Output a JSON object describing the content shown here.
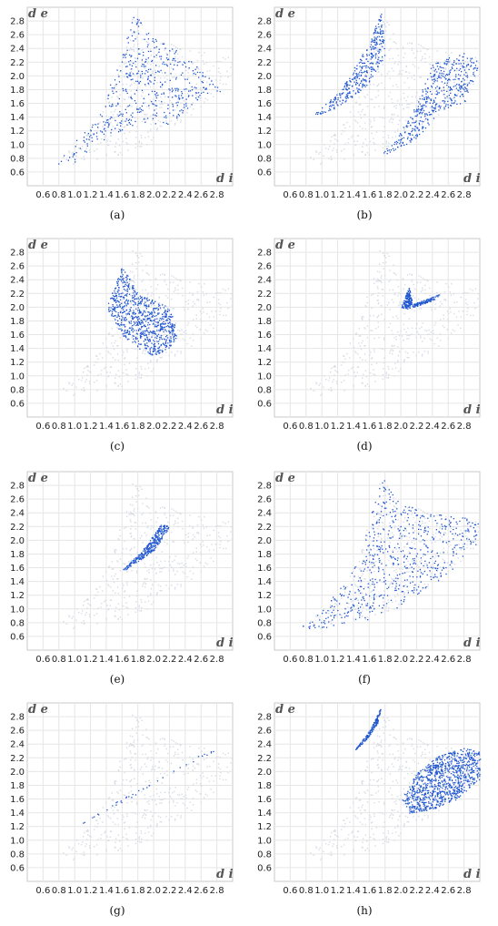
{
  "figure": {
    "panels": [
      {
        "label": "(a)",
        "axis_d_e": "d e",
        "axis_d_i": "d i",
        "region_kind": "broad",
        "region_color": "#1f55d0"
      },
      {
        "label": "(b)",
        "axis_d_e": "d e",
        "axis_d_i": "d i",
        "region_kind": "twin_wings",
        "region_color": "#1f55d0"
      },
      {
        "label": "(c)",
        "axis_d_e": "d e",
        "axis_d_i": "d i",
        "region_kind": "loops",
        "region_color": "#1f55d0"
      },
      {
        "label": "(d)",
        "axis_d_e": "d e",
        "axis_d_i": "d i",
        "region_kind": "small_v",
        "region_color": "#1f55d0"
      },
      {
        "label": "(e)",
        "axis_d_e": "d e",
        "axis_d_i": "d i",
        "region_kind": "spike",
        "region_color": "#1f55d0"
      },
      {
        "label": "(f)",
        "axis_d_e": "d e",
        "axis_d_i": "d i",
        "region_kind": "full",
        "region_color": "#1f55d0"
      },
      {
        "label": "(g)",
        "axis_d_e": "d e",
        "axis_d_i": "d i",
        "region_kind": "diagonal",
        "region_color": "#1f55d0"
      },
      {
        "label": "(h)",
        "axis_d_e": "d e",
        "axis_d_i": "d i",
        "region_kind": "right_lobe",
        "region_color": "#1f55d0"
      }
    ]
  },
  "chart_data": {
    "type": "scatter",
    "x_ticks": [
      "0.6",
      "0.8",
      "1.0",
      "1.2",
      "1.4",
      "1.6",
      "1.8",
      "2.0",
      "2.2",
      "2.4",
      "2.6",
      "2.8"
    ],
    "y_ticks": [
      "0.6",
      "0.8",
      "1.0",
      "1.2",
      "1.4",
      "1.6",
      "1.8",
      "2.0",
      "2.2",
      "2.4",
      "2.6",
      "2.8"
    ],
    "xlim": [
      0.4,
      3.0
    ],
    "ylim": [
      0.4,
      3.0
    ],
    "grid": true,
    "background_color": "#d6dbe4",
    "highlight_color": "#1f55d0",
    "xlabel": "d i",
    "ylabel": "d e"
  }
}
